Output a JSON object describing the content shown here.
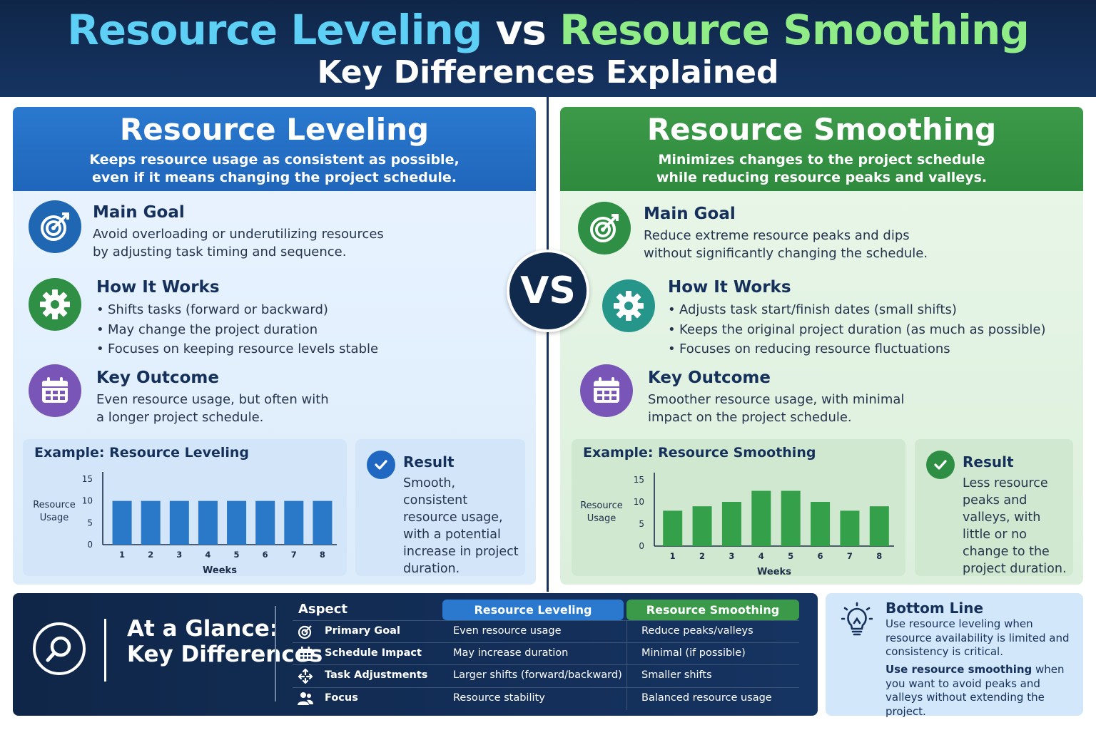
{
  "header": {
    "title_left": "Resource Leveling",
    "title_vs": "vs",
    "title_right": "Resource Smoothing",
    "subtitle": "Key Differences Explained"
  },
  "colors": {
    "leveling_blue": "#1f67b3",
    "smoothing_green": "#2f8f44",
    "navy": "#102a4e"
  },
  "vs_label": "VS",
  "leveling": {
    "title": "Resource Leveling",
    "desc_line1": "Keeps resource usage as consistent as possible,",
    "desc_line2": "even if it means changing the project schedule.",
    "main_goal": {
      "icon": "target-icon",
      "title": "Main Goal",
      "line1": "Avoid overloading or underutilizing resources",
      "line2": "by adjusting task timing and sequence."
    },
    "how": {
      "icon": "gear-icon",
      "title": "How It Works",
      "items": [
        "Shifts tasks (forward or backward)",
        "May change the project duration",
        "Focuses on keeping resource levels stable"
      ]
    },
    "outcome": {
      "icon": "calendar-icon",
      "title": "Key Outcome",
      "line1": "Even resource usage, but often with",
      "line2": "a longer project schedule."
    },
    "result": {
      "title": "Result",
      "text": "Smooth, consistent resource usage, with a potential increase in project duration."
    }
  },
  "smoothing": {
    "title": "Resource Smoothing",
    "desc_line1": "Minimizes changes to the project schedule",
    "desc_line2": "while reducing resource peaks and valleys.",
    "main_goal": {
      "icon": "target-icon",
      "title": "Main Goal",
      "line1": "Reduce extreme resource peaks and dips",
      "line2": "without significantly changing the schedule."
    },
    "how": {
      "icon": "gear-icon",
      "title": "How It Works",
      "items": [
        "Adjusts task start/finish dates (small shifts)",
        "Keeps the original project duration (as much as possible)",
        "Focuses on reducing resource fluctuations"
      ]
    },
    "outcome": {
      "icon": "calendar-icon",
      "title": "Key Outcome",
      "line1": "Smoother resource usage, with minimal",
      "line2": "impact on the project schedule."
    },
    "result": {
      "title": "Result",
      "text": "Less resource peaks and valleys, with little or no change to the project duration."
    }
  },
  "chart_data": [
    {
      "type": "bar",
      "title": "Example: Resource Leveling",
      "categories": [
        "1",
        "2",
        "3",
        "4",
        "5",
        "6",
        "7",
        "8"
      ],
      "values": [
        10,
        10,
        10,
        10,
        10,
        10,
        10,
        10
      ],
      "xlabel": "Weeks",
      "ylabel_line1": "Resource",
      "ylabel_line2": "Usage",
      "ylim": [
        0,
        15
      ],
      "yticks": [
        "0",
        "5",
        "10",
        "15"
      ],
      "color": "#2a78c8"
    },
    {
      "type": "bar",
      "title": "Example: Resource Smoothing",
      "categories": [
        "1",
        "2",
        "3",
        "4",
        "5",
        "6",
        "7",
        "8"
      ],
      "values": [
        8,
        9,
        10,
        12.5,
        12.5,
        10,
        8,
        9
      ],
      "xlabel": "Weeks",
      "ylabel_line1": "Resource",
      "ylabel_line2": "Usage",
      "ylim": [
        0,
        15
      ],
      "yticks": [
        "0",
        "5",
        "10",
        "15"
      ],
      "color": "#35a04a"
    }
  ],
  "glance": {
    "title_line1": "At a Glance:",
    "title_line2": "Key Differences",
    "aspect_header": "Aspect",
    "col_leveling": "Resource Leveling",
    "col_smoothing": "Resource Smoothing",
    "rows": [
      {
        "icon": "target-icon",
        "aspect": "Primary Goal",
        "leveling": "Even resource usage",
        "smoothing": "Reduce peaks/valleys"
      },
      {
        "icon": "calendar-icon",
        "aspect": "Schedule Impact",
        "leveling": "May increase duration",
        "smoothing": "Minimal (if possible)"
      },
      {
        "icon": "arrows-icon",
        "aspect": "Task Adjustments",
        "leveling": "Larger shifts (forward/backward)",
        "smoothing": "Smaller shifts"
      },
      {
        "icon": "people-icon",
        "aspect": "Focus",
        "leveling": "Resource stability",
        "smoothing": "Balanced resource usage"
      }
    ]
  },
  "bottom_line": {
    "title": "Bottom Line",
    "text1": "Use resource leveling when resource availability is limited and consistency is critical.",
    "text2_bold": "Use resource smoothing",
    "text2_rest": " when you want to avoid peaks and valleys without extending the project."
  }
}
